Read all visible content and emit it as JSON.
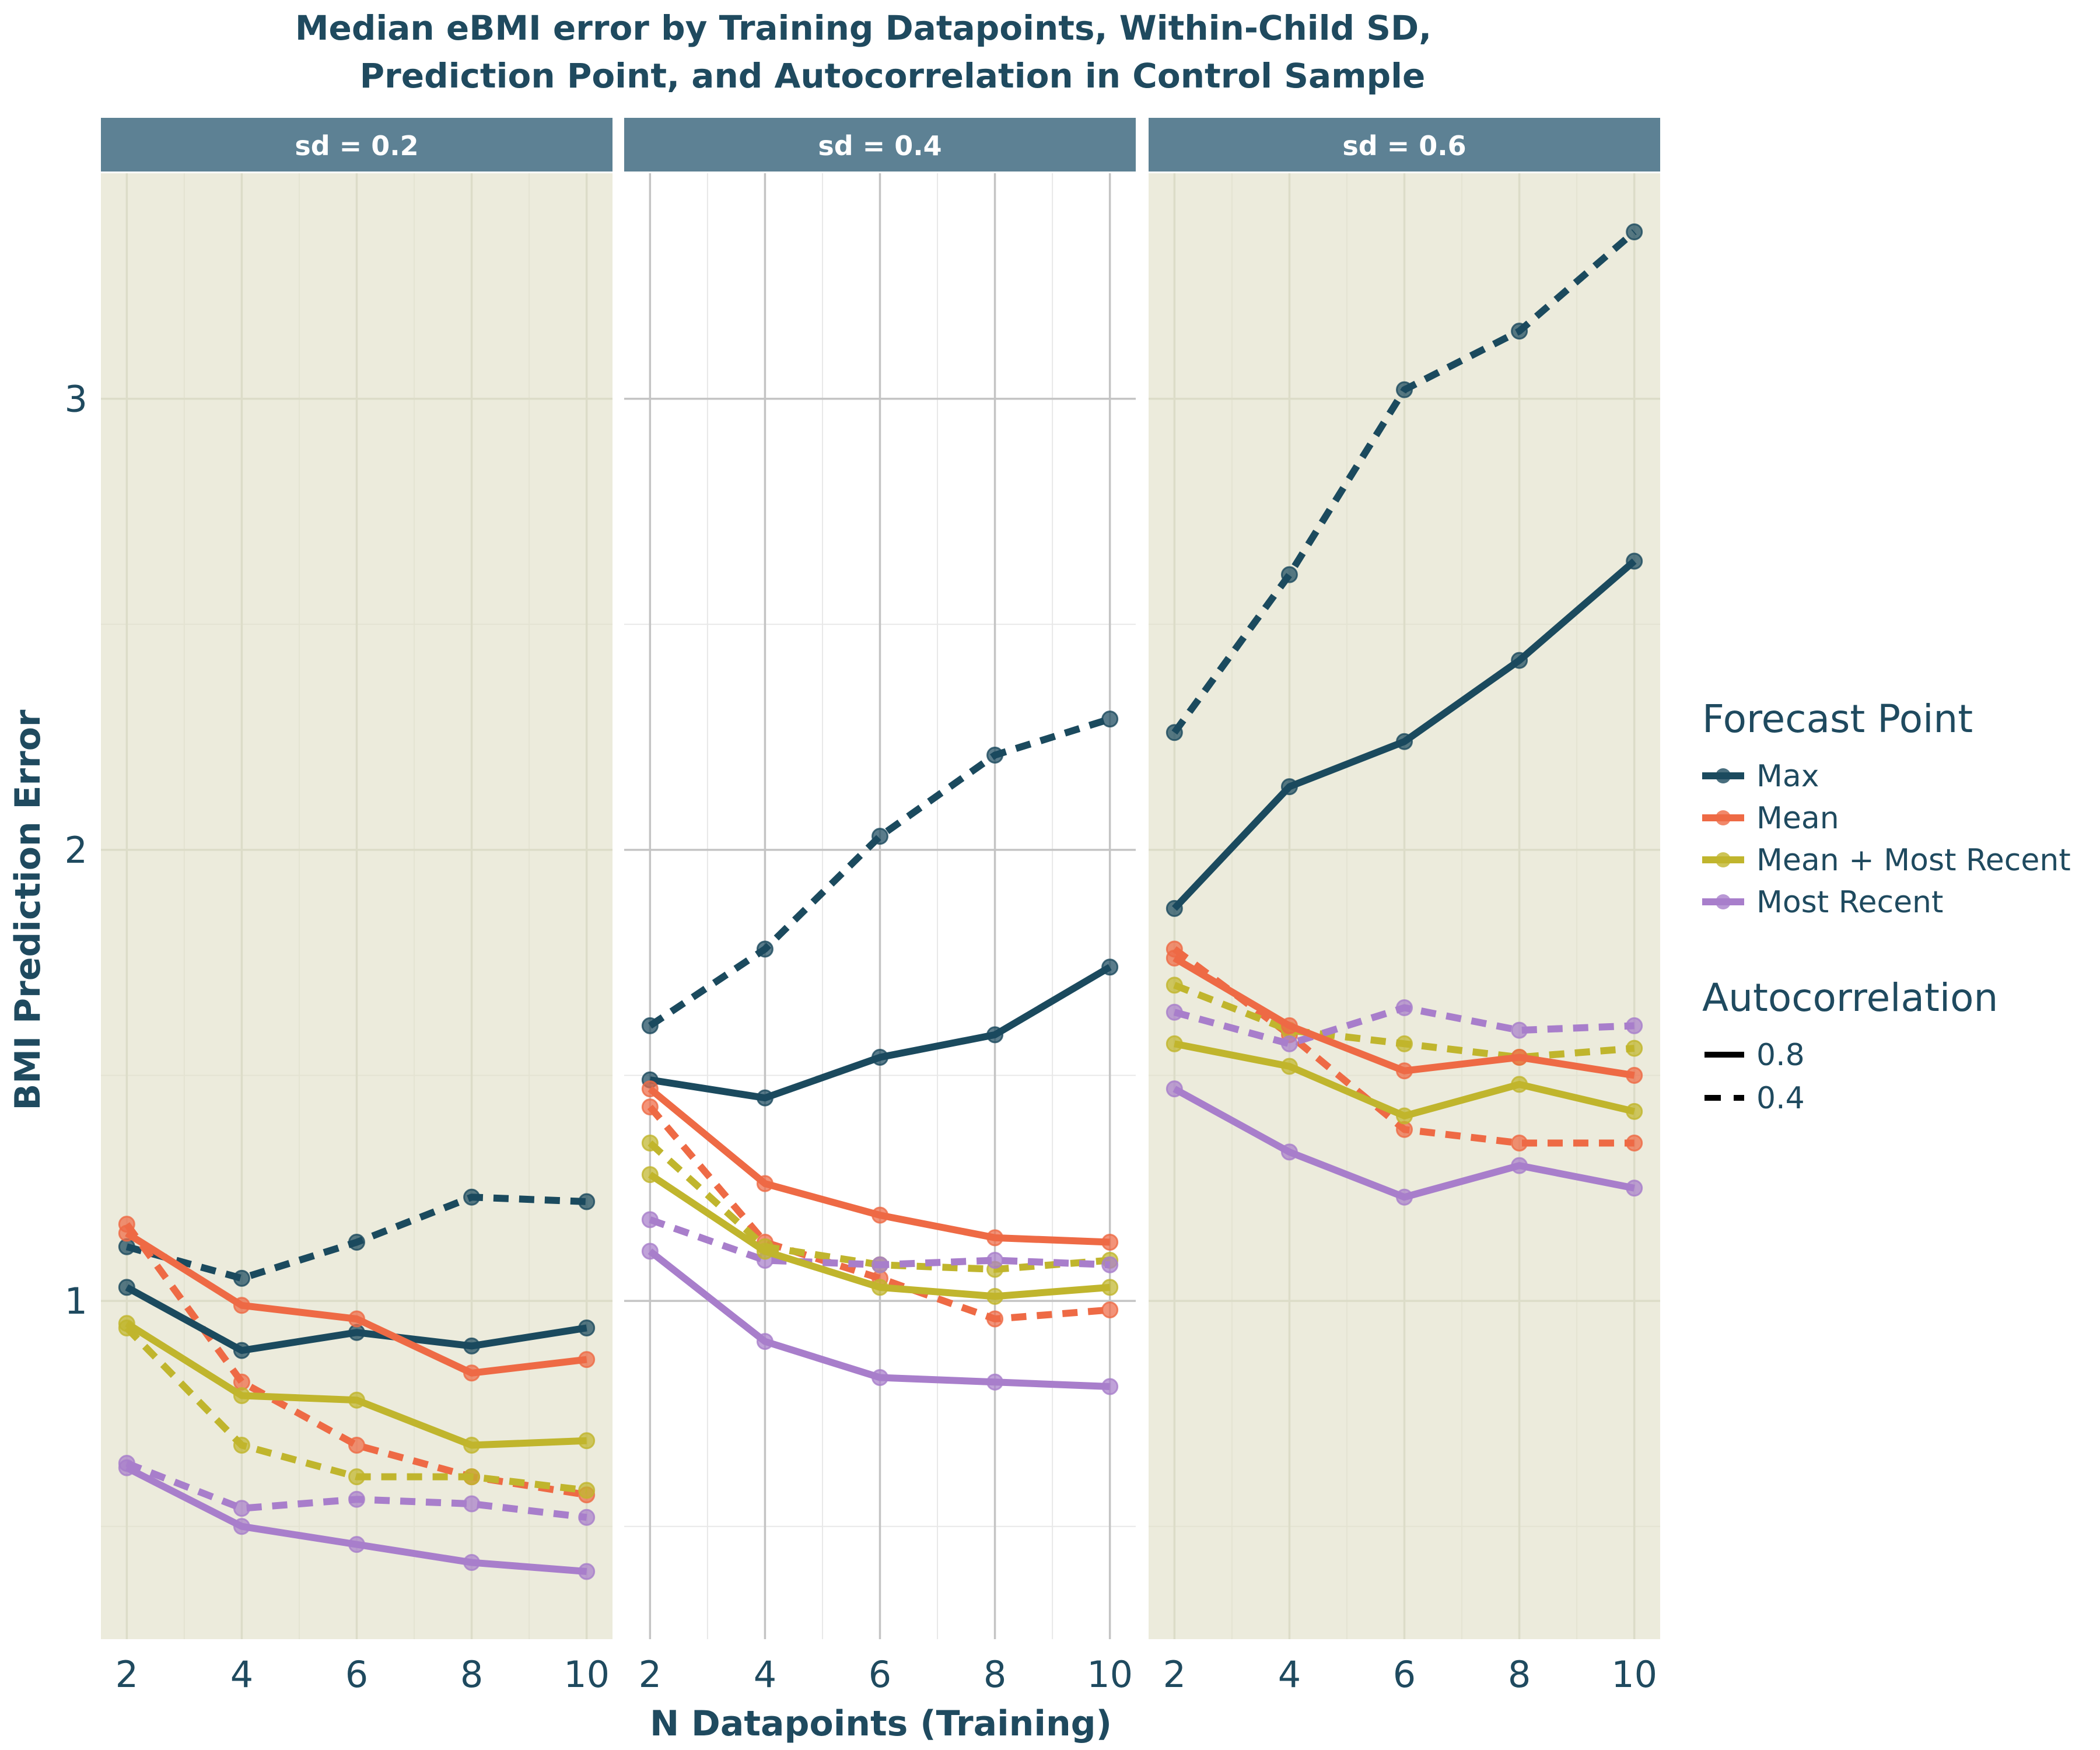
{
  "chart_data": {
    "type": "line",
    "title_line1": "Median eBMI error by Training Datapoints, Within-Child SD,",
    "title_line2": "Prediction Point, and Autocorrelation in Control Sample",
    "xlabel": "N Datapoints (Training)",
    "ylabel": "BMI Prediction Error",
    "x": [
      2,
      4,
      6,
      8,
      10
    ],
    "x_ticks": [
      "2",
      "4",
      "6",
      "8",
      "10"
    ],
    "ylim": [
      0.25,
      3.5
    ],
    "y_ticks": [
      1,
      2,
      3
    ],
    "y_tick_labels": [
      "1",
      "2",
      "3"
    ],
    "colors": {
      "Max": "#1b4a5e",
      "Mean": "#ee6a45",
      "Mean + Most Recent": "#c0b52d",
      "Most Recent": "#a87ecb",
      "panel_bg_shaded": "#ecebdc",
      "panel_bg_plain": "#ffffff",
      "strip_bg": "#5d8194"
    },
    "legend": {
      "placement": "right",
      "forecast_title": "Forecast Point",
      "forecast_items": [
        "Max",
        "Mean",
        "Mean + Most Recent",
        "Most Recent"
      ],
      "autocorr_title": "Autocorrelation",
      "autocorr_items": [
        {
          "label": "0.8",
          "style": "solid"
        },
        {
          "label": "0.4",
          "style": "dashed"
        }
      ]
    },
    "panels": [
      {
        "label": "sd = 0.2",
        "shaded": true,
        "series": [
          {
            "forecast": "Max",
            "autocorrelation": "0.8",
            "values": [
              1.03,
              0.89,
              0.93,
              0.9,
              0.94
            ]
          },
          {
            "forecast": "Max",
            "autocorrelation": "0.4",
            "values": [
              1.12,
              1.05,
              1.13,
              1.23,
              1.22
            ]
          },
          {
            "forecast": "Mean",
            "autocorrelation": "0.8",
            "values": [
              1.15,
              0.99,
              0.96,
              0.84,
              0.87
            ]
          },
          {
            "forecast": "Mean",
            "autocorrelation": "0.4",
            "values": [
              1.17,
              0.82,
              0.68,
              0.61,
              0.57
            ]
          },
          {
            "forecast": "Mean + Most Recent",
            "autocorrelation": "0.8",
            "values": [
              0.95,
              0.79,
              0.78,
              0.68,
              0.69
            ]
          },
          {
            "forecast": "Mean + Most Recent",
            "autocorrelation": "0.4",
            "values": [
              0.94,
              0.68,
              0.61,
              0.61,
              0.58
            ]
          },
          {
            "forecast": "Most Recent",
            "autocorrelation": "0.8",
            "values": [
              0.63,
              0.5,
              0.46,
              0.42,
              0.4
            ]
          },
          {
            "forecast": "Most Recent",
            "autocorrelation": "0.4",
            "values": [
              0.64,
              0.54,
              0.56,
              0.55,
              0.52
            ]
          }
        ]
      },
      {
        "label": "sd = 0.4",
        "shaded": false,
        "series": [
          {
            "forecast": "Max",
            "autocorrelation": "0.8",
            "values": [
              1.49,
              1.45,
              1.54,
              1.59,
              1.74
            ]
          },
          {
            "forecast": "Max",
            "autocorrelation": "0.4",
            "values": [
              1.61,
              1.78,
              2.03,
              2.21,
              2.29
            ]
          },
          {
            "forecast": "Mean",
            "autocorrelation": "0.8",
            "values": [
              1.47,
              1.26,
              1.19,
              1.14,
              1.13
            ]
          },
          {
            "forecast": "Mean",
            "autocorrelation": "0.4",
            "values": [
              1.43,
              1.13,
              1.05,
              0.96,
              0.98
            ]
          },
          {
            "forecast": "Mean + Most Recent",
            "autocorrelation": "0.8",
            "values": [
              1.28,
              1.11,
              1.03,
              1.01,
              1.03
            ]
          },
          {
            "forecast": "Mean + Most Recent",
            "autocorrelation": "0.4",
            "values": [
              1.35,
              1.12,
              1.08,
              1.07,
              1.09
            ]
          },
          {
            "forecast": "Most Recent",
            "autocorrelation": "0.8",
            "values": [
              1.11,
              0.91,
              0.83,
              0.82,
              0.81
            ]
          },
          {
            "forecast": "Most Recent",
            "autocorrelation": "0.4",
            "values": [
              1.18,
              1.09,
              1.08,
              1.09,
              1.08
            ]
          }
        ]
      },
      {
        "label": "sd = 0.6",
        "shaded": true,
        "series": [
          {
            "forecast": "Max",
            "autocorrelation": "0.8",
            "values": [
              1.87,
              2.14,
              2.24,
              2.42,
              2.64
            ]
          },
          {
            "forecast": "Max",
            "autocorrelation": "0.4",
            "values": [
              2.26,
              2.61,
              3.02,
              3.15,
              3.37
            ]
          },
          {
            "forecast": "Mean",
            "autocorrelation": "0.8",
            "values": [
              1.76,
              1.61,
              1.51,
              1.54,
              1.5
            ]
          },
          {
            "forecast": "Mean",
            "autocorrelation": "0.4",
            "values": [
              1.78,
              1.59,
              1.38,
              1.35,
              1.35
            ]
          },
          {
            "forecast": "Mean + Most Recent",
            "autocorrelation": "0.8",
            "values": [
              1.57,
              1.52,
              1.41,
              1.48,
              1.42
            ]
          },
          {
            "forecast": "Mean + Most Recent",
            "autocorrelation": "0.4",
            "values": [
              1.7,
              1.6,
              1.57,
              1.54,
              1.56
            ]
          },
          {
            "forecast": "Most Recent",
            "autocorrelation": "0.8",
            "values": [
              1.47,
              1.33,
              1.23,
              1.3,
              1.25
            ]
          },
          {
            "forecast": "Most Recent",
            "autocorrelation": "0.4",
            "values": [
              1.64,
              1.57,
              1.65,
              1.6,
              1.61
            ]
          }
        ]
      }
    ]
  }
}
